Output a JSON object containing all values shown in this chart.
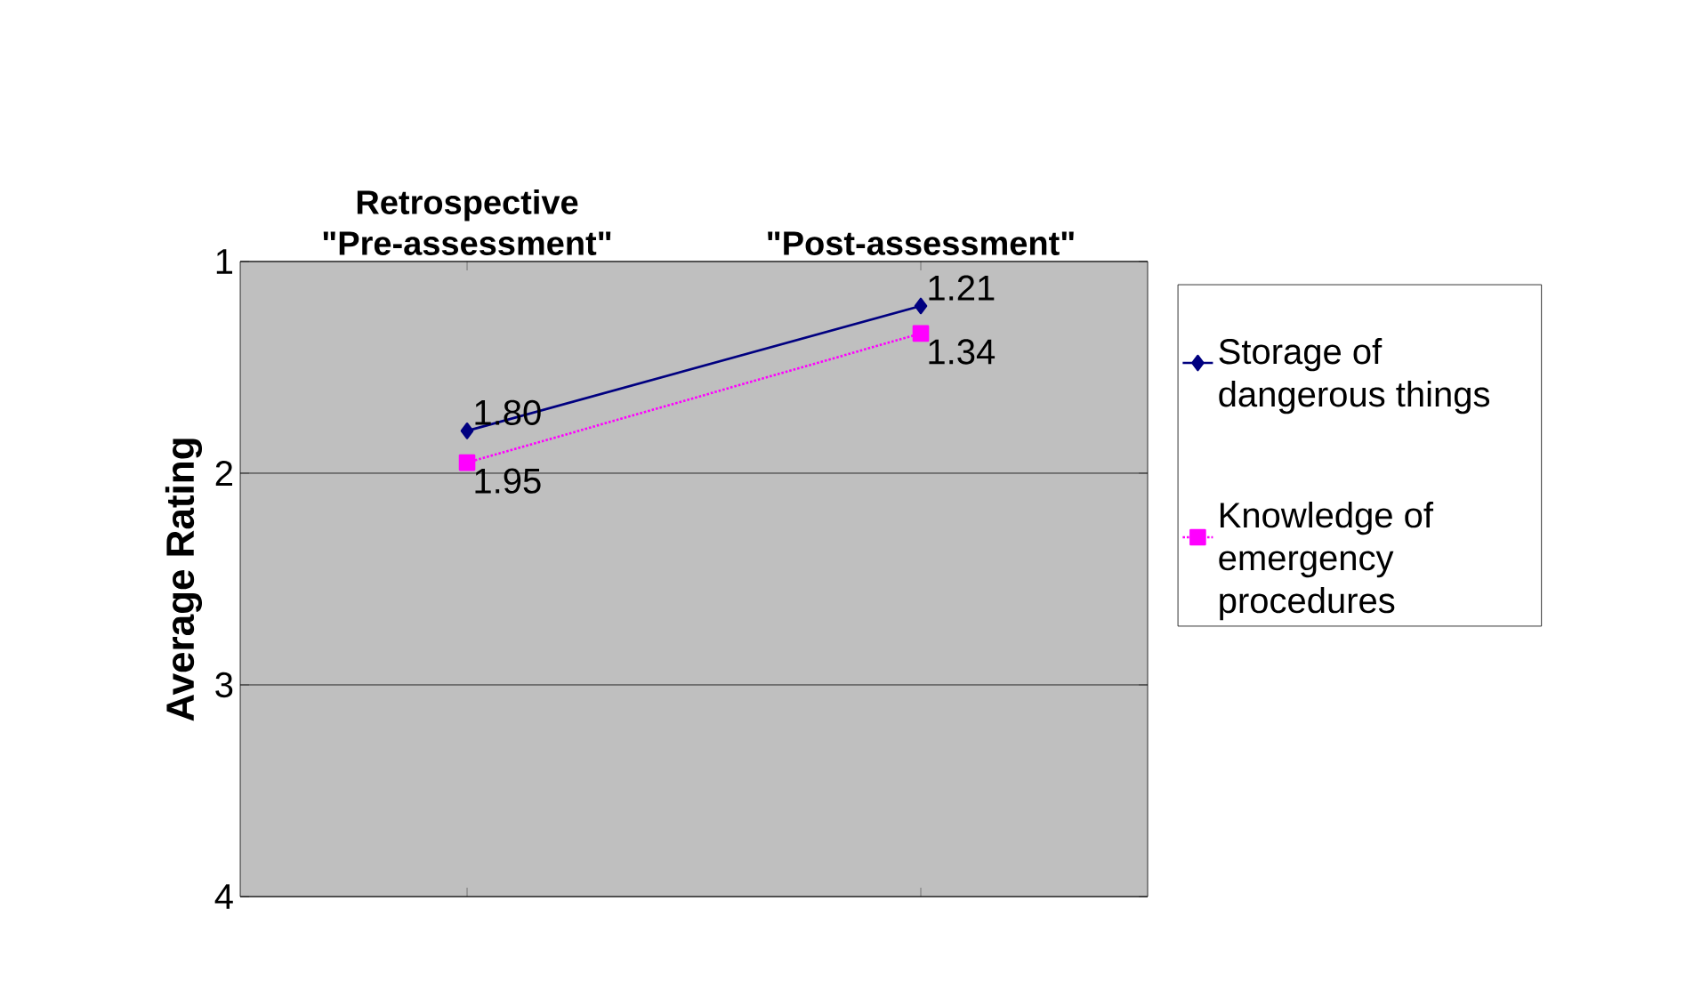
{
  "chart_data": {
    "type": "line",
    "ylabel": "Average Rating",
    "categories": [
      "Retrospective \"Pre-assessment\"",
      "\"Post-assessment\""
    ],
    "series": [
      {
        "name": "Storage of dangerous things",
        "color": "#000080",
        "values": [
          1.8,
          1.21
        ],
        "value_labels": [
          "1.80",
          "1.21"
        ],
        "marker": "diamond",
        "line_style": "solid"
      },
      {
        "name": "Knowledge of emergency procedures",
        "color": "#ff00ff",
        "values": [
          1.95,
          1.34
        ],
        "value_labels": [
          "1.95",
          "1.34"
        ],
        "marker": "square",
        "line_style": "dotted"
      }
    ],
    "ylim": [
      4,
      1
    ],
    "yticks": [
      1,
      2,
      3,
      4
    ],
    "grid": "y",
    "legend": "right"
  }
}
